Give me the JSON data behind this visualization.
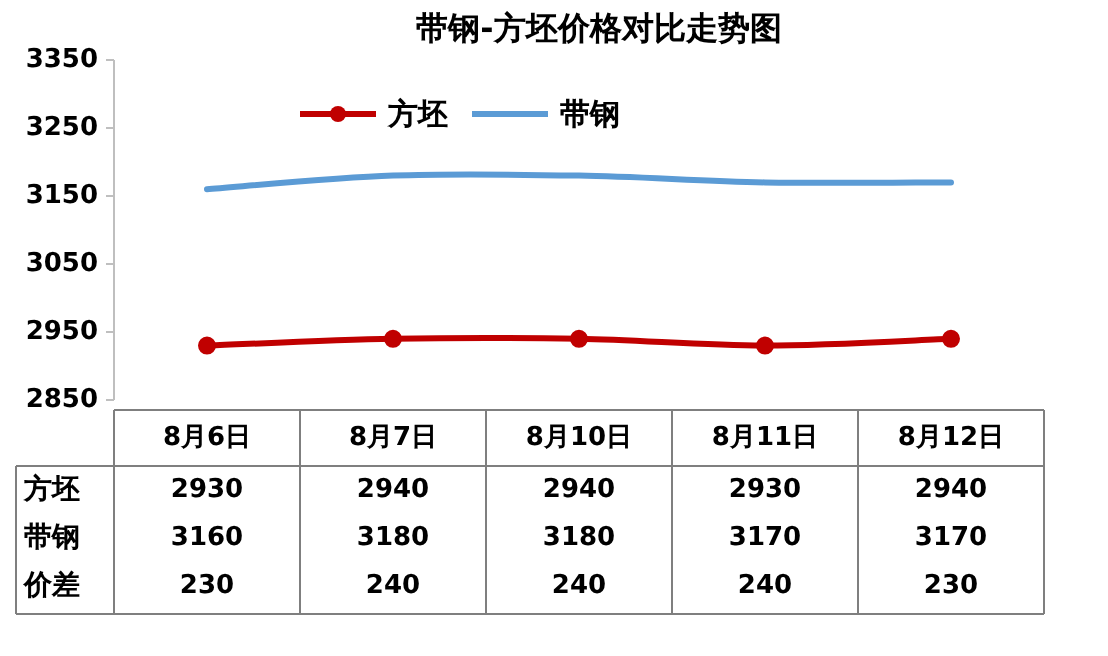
{
  "chart_data": {
    "type": "line",
    "title": "带钢-方坯价格对比走势图",
    "categories": [
      "8月6日",
      "8月7日",
      "8月10日",
      "8月11日",
      "8月12日"
    ],
    "series": [
      {
        "name": "方坯",
        "color": "#c00000",
        "values": [
          2930,
          2940,
          2940,
          2930,
          2940
        ],
        "marker": "circle"
      },
      {
        "name": "带钢",
        "color": "#5b9bd5",
        "values": [
          3160,
          3180,
          3180,
          3170,
          3170
        ],
        "marker": "none"
      }
    ],
    "ylim": [
      2850,
      3350
    ],
    "yticks": [
      2850,
      2950,
      3050,
      3150,
      3250,
      3350
    ],
    "grid": false,
    "legend": "top",
    "data_labels": true,
    "annotations": [
      "价差",
      "230",
      "240",
      "240",
      "240",
      "230"
    ]
  }
}
